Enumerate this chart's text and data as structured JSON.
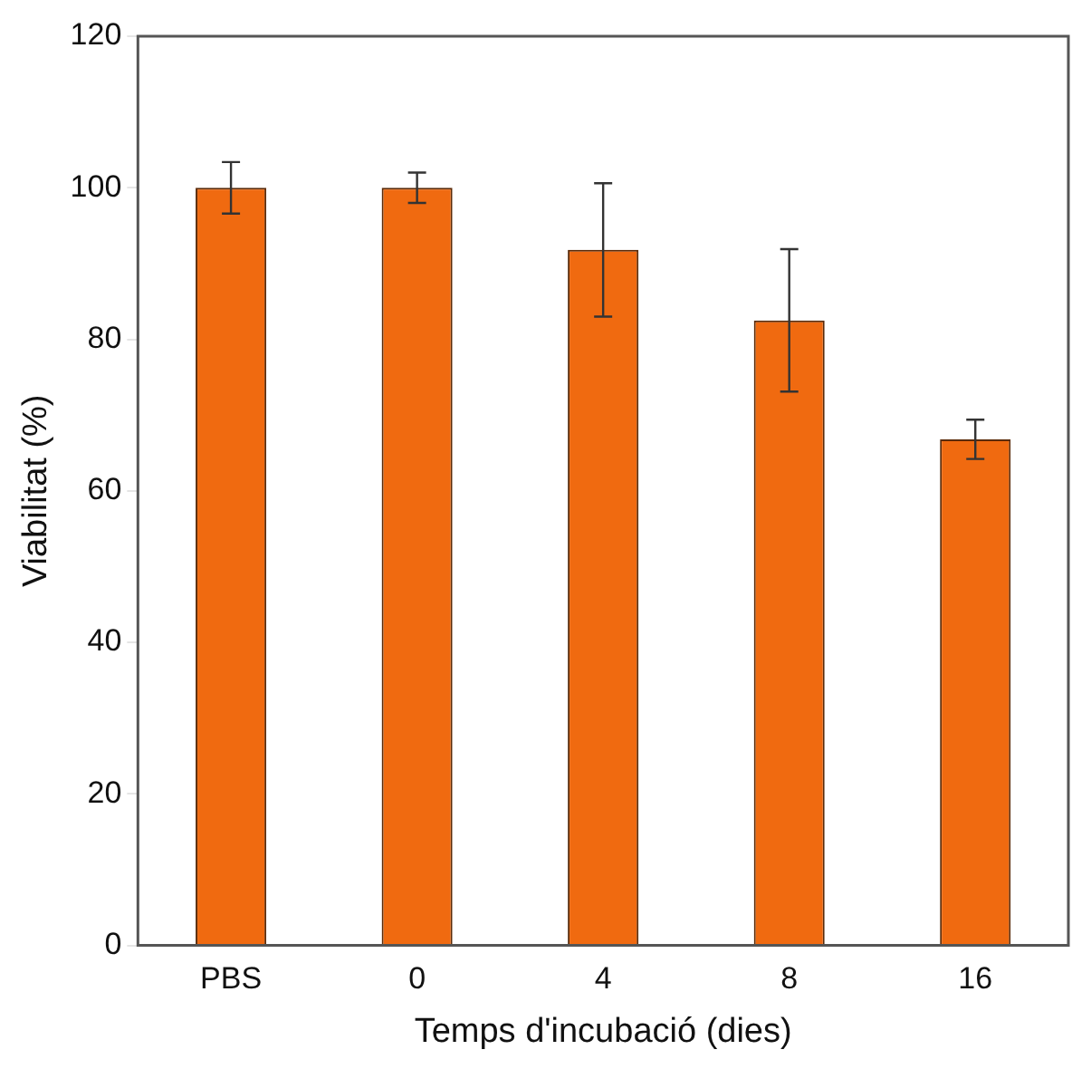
{
  "chart_data": {
    "type": "bar",
    "xlabel": "Temps d'incubació (dies)",
    "ylabel": "Viabilitat (%)",
    "categories": [
      "PBS",
      "0",
      "4",
      "8",
      "16"
    ],
    "values": [
      100,
      100,
      91.8,
      82.5,
      66.8
    ],
    "errors": [
      3.4,
      2,
      8.8,
      9.4,
      2.6
    ],
    "color": "#f06a10",
    "ylim": [
      0,
      120
    ],
    "yticks": [
      0,
      20,
      40,
      60,
      80,
      100,
      120
    ],
    "grid": false,
    "legend": false
  }
}
